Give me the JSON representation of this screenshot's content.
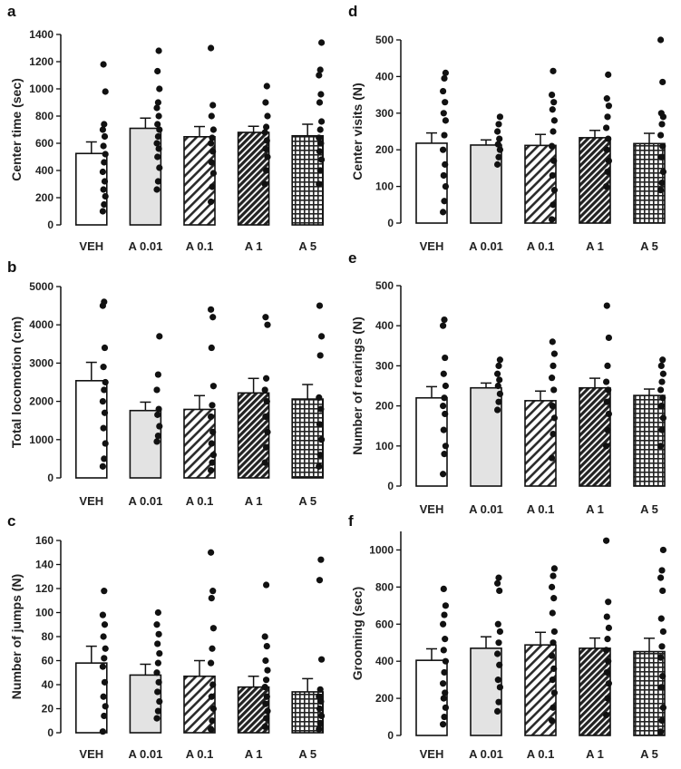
{
  "figure": {
    "colors": {
      "veh": "#ffffff",
      "a001": "#e3e3e3",
      "outline": "#111111",
      "dot": "#111111",
      "hatch_dark": "#333333"
    }
  },
  "chart_data": [
    {
      "id": "a",
      "letter": "a",
      "type": "bar",
      "ylabel": "Center time (sec)",
      "categories": [
        "VEH",
        "A 0.01",
        "A 0.1",
        "A 1",
        "A 5"
      ],
      "values": [
        525,
        710,
        648,
        680,
        655
      ],
      "errors": [
        85,
        75,
        75,
        45,
        85
      ],
      "ylim": [
        0,
        1400
      ],
      "yticks": [
        0,
        200,
        400,
        600,
        800,
        1000,
        1200,
        1400
      ],
      "points": [
        [
          100,
          150,
          210,
          260,
          320,
          390,
          460,
          520,
          580,
          650,
          700,
          740,
          980,
          1180
        ],
        [
          260,
          320,
          420,
          500,
          560,
          600,
          650,
          700,
          740,
          800,
          860,
          900,
          1000,
          1130,
          1280
        ],
        [
          170,
          280,
          380,
          460,
          540,
          600,
          640,
          700,
          800,
          880,
          1300
        ],
        [
          300,
          400,
          500,
          560,
          620,
          680,
          720,
          800,
          900,
          1020
        ],
        [
          300,
          400,
          480,
          540,
          600,
          640,
          700,
          760,
          900,
          960,
          1100,
          1140,
          1340
        ]
      ]
    },
    {
      "id": "b",
      "letter": "b",
      "type": "bar",
      "ylabel": "Total locomotion (cm)",
      "categories": [
        "VEH",
        "A 0.01",
        "A 0.1",
        "A 1",
        "A 5"
      ],
      "values": [
        2540,
        1760,
        1790,
        2220,
        2060
      ],
      "errors": [
        480,
        220,
        360,
        380,
        380
      ],
      "ylim": [
        0,
        5000
      ],
      "yticks": [
        0,
        1000,
        2000,
        3000,
        4000,
        5000
      ],
      "points": [
        [
          300,
          500,
          900,
          1300,
          1700,
          2000,
          2300,
          2500,
          2900,
          3400,
          4500,
          4600
        ],
        [
          950,
          1100,
          1350,
          1650,
          1800,
          2300,
          2700,
          3700
        ],
        [
          200,
          400,
          600,
          900,
          1200,
          1600,
          1900,
          2400,
          3400,
          4200,
          4400
        ],
        [
          400,
          800,
          1200,
          1600,
          2000,
          2300,
          2600,
          4000,
          4200
        ],
        [
          300,
          600,
          1000,
          1400,
          1800,
          2100,
          3200,
          3700,
          4500
        ]
      ]
    },
    {
      "id": "c",
      "letter": "c",
      "type": "bar",
      "ylabel": "Number of jumps (N)",
      "categories": [
        "VEH",
        "A 0.01",
        "A 0.1",
        "A 1",
        "A 5"
      ],
      "values": [
        58,
        48,
        47,
        38,
        34
      ],
      "errors": [
        14,
        9,
        13,
        9,
        11
      ],
      "ylim": [
        0,
        160
      ],
      "yticks": [
        0,
        20,
        40,
        60,
        80,
        100,
        120,
        140,
        160
      ],
      "points": [
        [
          1,
          14,
          22,
          30,
          42,
          55,
          62,
          70,
          80,
          90,
          98,
          118
        ],
        [
          12,
          18,
          26,
          34,
          42,
          50,
          58,
          66,
          74,
          82,
          90,
          100
        ],
        [
          3,
          10,
          20,
          30,
          40,
          58,
          70,
          87,
          112,
          118,
          150
        ],
        [
          5,
          12,
          18,
          24,
          30,
          38,
          44,
          52,
          60,
          72,
          80,
          123
        ],
        [
          3,
          8,
          14,
          20,
          26,
          30,
          36,
          61,
          127,
          144
        ]
      ]
    },
    {
      "id": "d",
      "letter": "d",
      "type": "bar",
      "ylabel": "Center visits (N)",
      "categories": [
        "VEH",
        "A 0.01",
        "A 0.1",
        "A 1",
        "A 5"
      ],
      "values": [
        218,
        213,
        212,
        233,
        217
      ],
      "errors": [
        28,
        14,
        30,
        20,
        28
      ],
      "ylim": [
        0,
        500
      ],
      "yticks": [
        0,
        100,
        200,
        300,
        400,
        500
      ],
      "points": [
        [
          30,
          60,
          100,
          130,
          160,
          200,
          240,
          280,
          300,
          330,
          360,
          395,
          410
        ],
        [
          160,
          180,
          200,
          215,
          230,
          250,
          270,
          290
        ],
        [
          10,
          50,
          90,
          130,
          170,
          210,
          250,
          280,
          310,
          330,
          350,
          415
        ],
        [
          100,
          140,
          170,
          200,
          230,
          260,
          290,
          320,
          340,
          405
        ],
        [
          90,
          110,
          140,
          180,
          210,
          240,
          270,
          290,
          300,
          385,
          500
        ]
      ]
    },
    {
      "id": "e",
      "letter": "e",
      "type": "bar",
      "ylabel": "Number of rearings (N)",
      "categories": [
        "VEH",
        "A 0.01",
        "A 0.1",
        "A 1",
        "A 5"
      ],
      "values": [
        220,
        245,
        213,
        245,
        226
      ],
      "errors": [
        28,
        12,
        24,
        24,
        16
      ],
      "ylim": [
        0,
        500
      ],
      "yticks": [
        0,
        100,
        200,
        300,
        400,
        500
      ],
      "points": [
        [
          30,
          80,
          100,
          140,
          180,
          200,
          220,
          250,
          280,
          320,
          400,
          415
        ],
        [
          190,
          210,
          230,
          250,
          265,
          280,
          300,
          315
        ],
        [
          70,
          130,
          170,
          200,
          240,
          270,
          300,
          330,
          360
        ],
        [
          100,
          140,
          180,
          210,
          240,
          260,
          300,
          370,
          450
        ],
        [
          100,
          140,
          170,
          200,
          220,
          240,
          260,
          280,
          300,
          315
        ]
      ]
    },
    {
      "id": "f",
      "letter": "f",
      "type": "bar",
      "ylabel": "Grooming (sec)",
      "categories": [
        "VEH",
        "A 0.01",
        "A 0.1",
        "A 1",
        "A 5"
      ],
      "values": [
        405,
        470,
        488,
        470,
        452
      ],
      "errors": [
        62,
        62,
        68,
        55,
        72
      ],
      "ylim": [
        0,
        1100
      ],
      "yticks": [
        0,
        200,
        400,
        600,
        800,
        1000
      ],
      "points": [
        [
          60,
          100,
          150,
          200,
          230,
          280,
          340,
          400,
          460,
          520,
          600,
          650,
          700,
          790
        ],
        [
          130,
          180,
          260,
          300,
          380,
          440,
          500,
          560,
          600,
          780,
          820,
          850
        ],
        [
          80,
          150,
          230,
          300,
          360,
          430,
          500,
          560,
          660,
          740,
          800,
          860,
          900
        ],
        [
          110,
          200,
          280,
          340,
          400,
          460,
          520,
          580,
          640,
          720,
          1050
        ],
        [
          20,
          80,
          150,
          260,
          320,
          420,
          480,
          560,
          630,
          780,
          850,
          890,
          1000
        ]
      ]
    }
  ]
}
